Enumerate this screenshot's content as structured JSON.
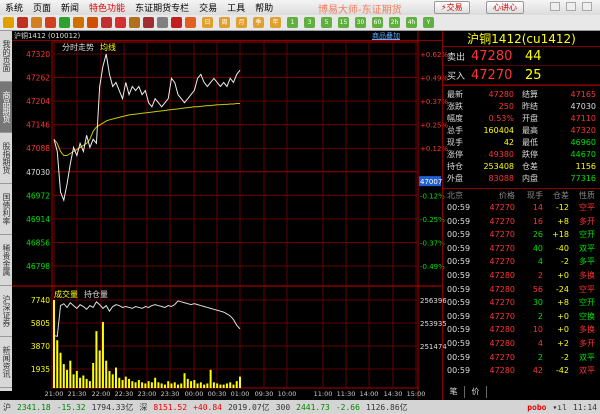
{
  "menu": [
    "系统",
    "页面",
    "新闻",
    "特色功能",
    "东证期货专栏",
    "交易",
    "工具",
    "帮助"
  ],
  "app_title": "博易大师-东证期货",
  "buttons": {
    "trade": "⚡交易",
    "heart": "心讲心"
  },
  "toolbar": {
    "icons": [
      "back-icon",
      "home-icon",
      "page-icon",
      "quote-icon",
      "refresh-icon",
      "zoom-in-icon",
      "zoom-out-icon",
      "layer-icon",
      "pen-icon",
      "sound-icon",
      "filter-icon",
      "table-icon",
      "intraday-chart-icon",
      "kline-icon"
    ],
    "periods": [
      "日",
      "周",
      "月",
      "季",
      "年",
      "1",
      "3",
      "5",
      "15",
      "30",
      "60",
      "2h",
      "4h",
      "Y"
    ]
  },
  "sidebar": [
    {
      "label": "我的页面"
    },
    {
      "label": "商品期货",
      "selected": true
    },
    {
      "label": "股指期货"
    },
    {
      "label": "国债利率"
    },
    {
      "label": "稀贵金属"
    },
    {
      "label": "沪深证券"
    },
    {
      "label": "新闻资讯"
    }
  ],
  "chart_header": {
    "symbol": "沪铜1412 (010012)",
    "add_link": "商品叠加",
    "pane_title": "分时走势",
    "avg_label": "均线",
    "vol_title": "成交量",
    "oi_title": "持仓量"
  },
  "chart_data": {
    "type": "line",
    "price_ticks": [
      "47320",
      "47262",
      "47204",
      "47146",
      "47088",
      "47030",
      "46972",
      "46914",
      "46856",
      "46798"
    ],
    "pct_ticks": [
      "+0.62%",
      "+0.49%",
      "+0.37%",
      "+0.25%",
      "+0.12%",
      "",
      "-0.12%",
      "-0.25%",
      "-0.37%",
      "-0.49%"
    ],
    "prev_settle": 47030,
    "ylim": [
      46798,
      47320
    ],
    "cursor_label": "47007",
    "vol_ticks": [
      "7740",
      "5805",
      "3870",
      "1935"
    ],
    "vol_ylim": [
      0,
      7740
    ],
    "oi_ticks": [
      "256396",
      "253935",
      "251474"
    ],
    "oi_ylim": [
      249013,
      256396
    ],
    "time_ticks": [
      "21:00",
      "21:30",
      "22:00",
      "22:30",
      "23:00",
      "23:30",
      "00:00",
      "00:30",
      "01:00",
      "09:30",
      "10:00",
      "11:00",
      "11:30",
      "14:00",
      "14:30",
      "15:00"
    ],
    "price": [
      47110,
      47080,
      46980,
      46960,
      47000,
      47050,
      47090,
      47070,
      47100,
      47080,
      47120,
      47090,
      47110,
      47100,
      47240,
      47290,
      47320,
      47270,
      47240,
      47250,
      47230,
      47210,
      47250,
      47220,
      47240,
      47230,
      47240,
      47220,
      47230,
      47200,
      47190,
      47210,
      47200,
      47190,
      47200,
      47210,
      47260,
      47250,
      47220,
      47210,
      47200,
      47210,
      47220,
      47230,
      47260,
      47270,
      47250,
      47240,
      47250,
      47260,
      47250,
      47240,
      47250,
      47240,
      47260,
      47250,
      47270,
      47280
    ],
    "avg": [
      47110,
      47100,
      47080,
      47070,
      47070,
      47075,
      47080,
      47085,
      47090,
      47095,
      47100,
      47110,
      47130,
      47140,
      47145,
      47150,
      47155,
      47158,
      47160,
      47162,
      47164,
      47166,
      47168,
      47170,
      47171,
      47172,
      47173,
      47174,
      47175,
      47176,
      47177,
      47178,
      47179,
      47180,
      47181,
      47182,
      47183,
      47184,
      47185,
      47186,
      47187,
      47188,
      47189,
      47190,
      47190,
      47191,
      47192,
      47193,
      47193,
      47194,
      47195,
      47195,
      47196,
      47196,
      47197,
      47197,
      47198,
      47198
    ],
    "volume": [
      7740,
      4200,
      3100,
      2100,
      1600,
      2400,
      1200,
      1500,
      900,
      1100,
      800,
      600,
      2200,
      5000,
      3300,
      5800,
      2400,
      1500,
      1200,
      1800,
      900,
      700,
      1000,
      800,
      600,
      500,
      700,
      500,
      400,
      600,
      500,
      900,
      500,
      400,
      300,
      600,
      400,
      500,
      300,
      400,
      1300,
      800,
      600,
      700,
      400,
      500,
      300,
      400,
      1600,
      500,
      400,
      300,
      300,
      400,
      500,
      300,
      600,
      1000
    ],
    "open_interest": [
      252600,
      252500,
      255800,
      256000,
      255600,
      256100,
      255800,
      255500,
      255900,
      255700,
      255400,
      255800,
      255600,
      256200,
      255900,
      255500,
      255800,
      255200,
      255700,
      255900,
      255800,
      255600,
      255700,
      255600,
      255500,
      255700,
      255600,
      255500,
      255700,
      255600,
      255800,
      255900,
      255800,
      255700,
      255600,
      255800,
      255700,
      255900,
      256300,
      256200,
      256100,
      256000,
      255900,
      256000,
      255900,
      255800,
      255700,
      255600,
      255500,
      255400,
      255300,
      255200,
      255100,
      254900,
      254700,
      254300,
      253700,
      253300
    ]
  },
  "quote": {
    "title": "沪铜1412(cu1412)",
    "ask_label": "卖出",
    "ask_price": "47280",
    "ask_vol": "44",
    "bid_label": "买入",
    "bid_price": "47270",
    "bid_vol": "25",
    "stats": [
      {
        "k": "最新",
        "v": "47280",
        "c": "up",
        "k2": "结算",
        "v2": "47165",
        "c2": "up"
      },
      {
        "k": "涨跌",
        "v": "250",
        "c": "up",
        "k2": "昨结",
        "v2": "47030",
        "c2": "wh"
      },
      {
        "k": "幅度",
        "v": "0.53%",
        "c": "up",
        "k2": "开盘",
        "v2": "47110",
        "c2": "up"
      },
      {
        "k": "总手",
        "v": "160404",
        "c": "yl",
        "k2": "最高",
        "v2": "47320",
        "c2": "up"
      },
      {
        "k": "现手",
        "v": "42",
        "c": "yl",
        "k2": "最低",
        "v2": "46960",
        "c2": "dn"
      },
      {
        "k": "涨停",
        "v": "49380",
        "c": "up",
        "k2": "跌停",
        "v2": "44670",
        "c2": "dn"
      },
      {
        "k": "持仓",
        "v": "253408",
        "c": "yl",
        "k2": "仓差",
        "v2": "1156",
        "c2": "yl"
      },
      {
        "k": "外盘",
        "v": "83088",
        "c": "up",
        "k2": "内盘",
        "v2": "77316",
        "c2": "dn"
      }
    ],
    "trade_headers": [
      "北京",
      "价格",
      "现手",
      "仓差",
      "性质"
    ],
    "trades": [
      {
        "t": "00:59",
        "p": "47270",
        "q": "14",
        "d": "-12",
        "n": "空平",
        "s": "up"
      },
      {
        "t": "00:59",
        "p": "47270",
        "q": "16",
        "d": "+8",
        "n": "多开",
        "s": "up"
      },
      {
        "t": "00:59",
        "p": "47270",
        "q": "26",
        "d": "+18",
        "n": "空开",
        "s": "dn"
      },
      {
        "t": "00:59",
        "p": "47270",
        "q": "40",
        "d": "-40",
        "n": "双平",
        "s": "dn"
      },
      {
        "t": "00:59",
        "p": "47270",
        "q": "4",
        "d": "-2",
        "n": "多平",
        "s": "dn"
      },
      {
        "t": "00:59",
        "p": "47280",
        "q": "2",
        "d": "+0",
        "n": "多换",
        "s": "up"
      },
      {
        "t": "00:59",
        "p": "47280",
        "q": "56",
        "d": "-24",
        "n": "空平",
        "s": "up"
      },
      {
        "t": "00:59",
        "p": "47270",
        "q": "30",
        "d": "+8",
        "n": "空开",
        "s": "dn"
      },
      {
        "t": "00:59",
        "p": "47270",
        "q": "2",
        "d": "+0",
        "n": "空换",
        "s": "dn"
      },
      {
        "t": "00:59",
        "p": "47280",
        "q": "10",
        "d": "+0",
        "n": "多换",
        "s": "up"
      },
      {
        "t": "00:59",
        "p": "47280",
        "q": "4",
        "d": "+2",
        "n": "多开",
        "s": "up"
      },
      {
        "t": "00:59",
        "p": "47270",
        "q": "2",
        "d": "-2",
        "n": "双平",
        "s": "dn"
      },
      {
        "t": "00:59",
        "p": "47280",
        "q": "42",
        "d": "-42",
        "n": "双平",
        "s": "up"
      }
    ],
    "tabs": [
      "笔",
      "价"
    ]
  },
  "status": {
    "sh_label": "沪",
    "sh": "2341.18",
    "sh_chg": "-15.32",
    "sh_amt": "1794.33亿",
    "sz_label": "深",
    "sz": "8151.52",
    "sz_chg": "+40.84",
    "sz_amt": "2019.07亿",
    "hs_label": "300",
    "hs": "2441.73",
    "hs_chg": "-2.66",
    "hs_amt": "1126.86亿",
    "brand": "pobo",
    "clock": "11:14"
  },
  "colors": {
    "up": "#ff3232",
    "down": "#00e000",
    "grid": "#800000",
    "avg": "#c8c800",
    "volume": "#ffff00"
  }
}
